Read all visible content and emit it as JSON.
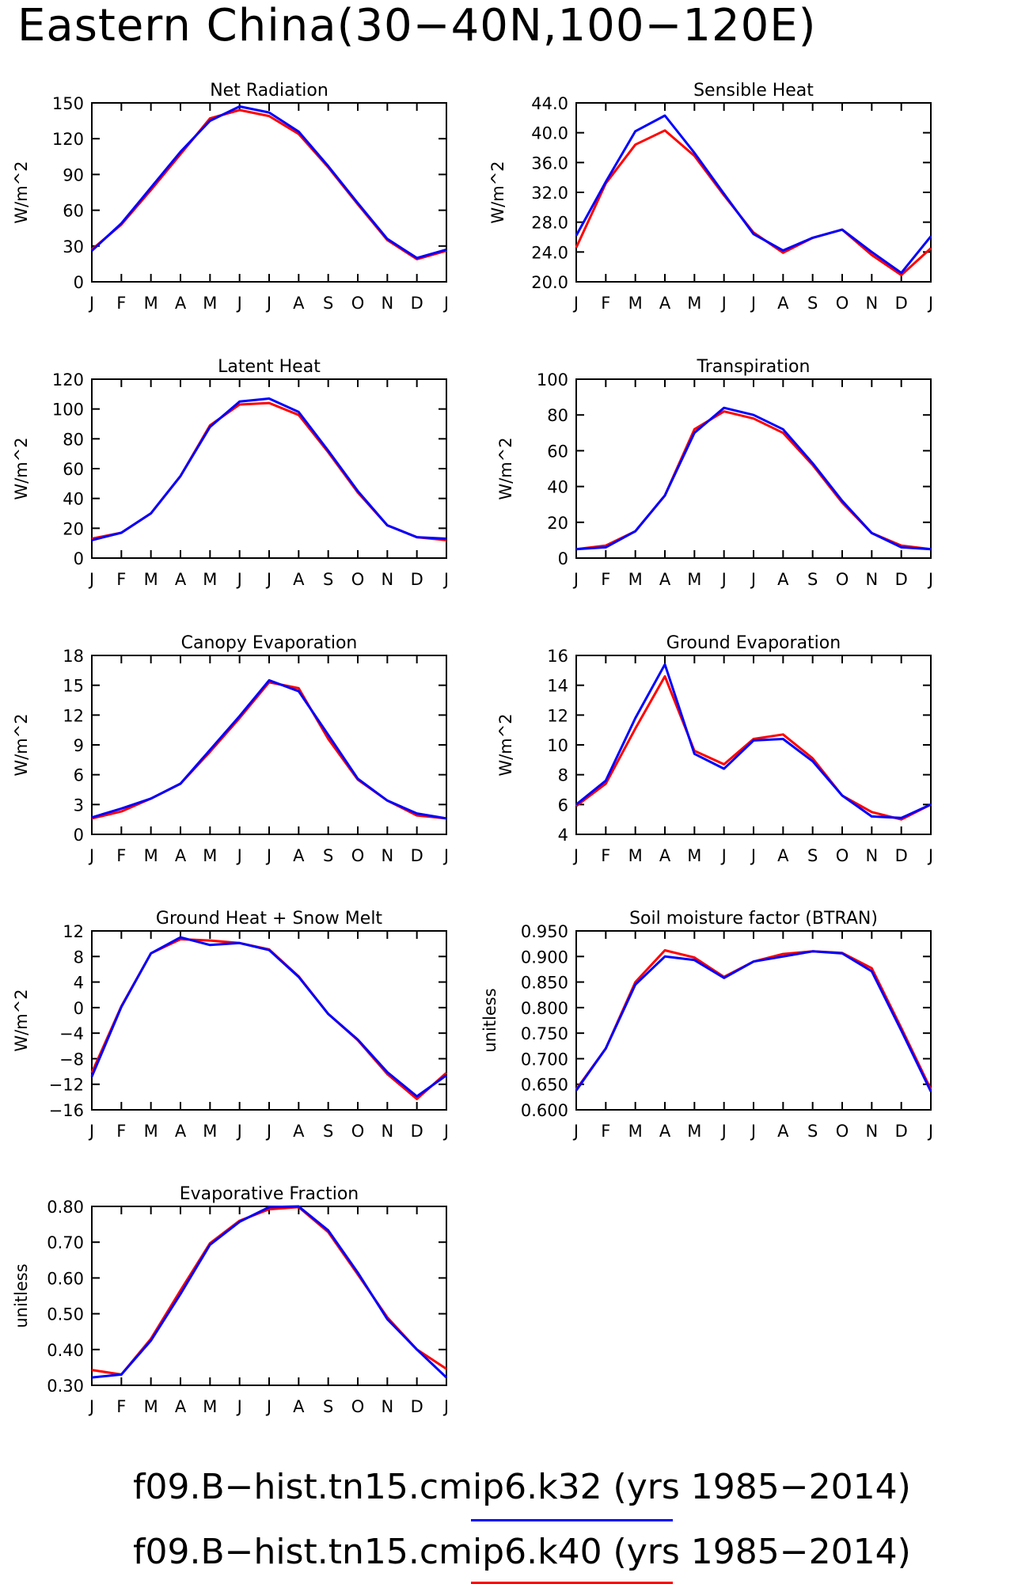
{
  "title": "Eastern China(30−40N,100−120E)",
  "colors": {
    "k32": "#0000ff",
    "k40": "#ff0000",
    "axis": "#000000"
  },
  "legend": [
    {
      "text": "f09.B−hist.tn15.cmip6.k32 (yrs 1985−2014)",
      "color": "#0000ff"
    },
    {
      "text": "f09.B−hist.tn15.cmip6.k40 (yrs 1985−2014)",
      "color": "#ff0000"
    }
  ],
  "chart_data": [
    {
      "type": "line",
      "title": "Net Radiation",
      "ylabel": "W/m^2",
      "categories": [
        "J",
        "F",
        "M",
        "A",
        "M",
        "J",
        "J",
        "A",
        "S",
        "O",
        "N",
        "D",
        "J"
      ],
      "ylim": [
        0,
        150
      ],
      "yticks": [
        0,
        30,
        60,
        90,
        120,
        150
      ],
      "ydecimals": 0,
      "series": [
        {
          "color": "#ff0000",
          "values": [
            27,
            48,
            77,
            107,
            137,
            144,
            139,
            124,
            96,
            65,
            35,
            19,
            26
          ]
        },
        {
          "color": "#0000ff",
          "values": [
            26,
            49,
            79,
            109,
            135,
            147,
            142,
            126,
            97,
            66,
            36,
            20,
            27
          ]
        }
      ]
    },
    {
      "type": "line",
      "title": "Sensible Heat",
      "ylabel": "W/m^2",
      "categories": [
        "J",
        "F",
        "M",
        "A",
        "M",
        "J",
        "J",
        "A",
        "S",
        "O",
        "N",
        "D",
        "J"
      ],
      "ylim": [
        20,
        44
      ],
      "yticks": [
        20,
        24,
        28,
        32,
        36,
        40,
        44
      ],
      "ydecimals": 1,
      "series": [
        {
          "color": "#ff0000",
          "values": [
            24.6,
            33.2,
            38.4,
            40.3,
            36.9,
            31.6,
            26.6,
            23.9,
            25.9,
            27.0,
            23.6,
            20.9,
            24.5
          ]
        },
        {
          "color": "#0000ff",
          "values": [
            26.2,
            33.4,
            40.2,
            42.3,
            37.3,
            31.8,
            26.4,
            24.2,
            25.9,
            27.0,
            24.0,
            21.2,
            26.1
          ]
        }
      ]
    },
    {
      "type": "line",
      "title": "Latent Heat",
      "ylabel": "W/m^2",
      "categories": [
        "J",
        "F",
        "M",
        "A",
        "M",
        "J",
        "J",
        "A",
        "S",
        "O",
        "N",
        "D",
        "J"
      ],
      "ylim": [
        0,
        120
      ],
      "yticks": [
        0,
        20,
        40,
        60,
        80,
        100,
        120
      ],
      "ydecimals": 0,
      "series": [
        {
          "color": "#ff0000",
          "values": [
            13,
            17,
            30,
            55,
            89,
            103,
            104,
            96,
            71,
            44,
            22,
            14,
            12
          ]
        },
        {
          "color": "#0000ff",
          "values": [
            12,
            17,
            30,
            55,
            88,
            105,
            107,
            98,
            72,
            45,
            22,
            14,
            13
          ]
        }
      ]
    },
    {
      "type": "line",
      "title": "Transpiration",
      "ylabel": "W/m^2",
      "categories": [
        "J",
        "F",
        "M",
        "A",
        "M",
        "J",
        "J",
        "A",
        "S",
        "O",
        "N",
        "D",
        "J"
      ],
      "ylim": [
        0,
        100
      ],
      "yticks": [
        0,
        20,
        40,
        60,
        80,
        100
      ],
      "ydecimals": 0,
      "series": [
        {
          "color": "#ff0000",
          "values": [
            5,
            7,
            15,
            35,
            72,
            82,
            78,
            70,
            52,
            31,
            14,
            7,
            5
          ]
        },
        {
          "color": "#0000ff",
          "values": [
            5,
            6,
            15,
            35,
            70,
            84,
            80,
            72,
            53,
            32,
            14,
            6,
            5
          ]
        }
      ]
    },
    {
      "type": "line",
      "title": "Canopy Evaporation",
      "ylabel": "W/m^2",
      "categories": [
        "J",
        "F",
        "M",
        "A",
        "M",
        "J",
        "J",
        "A",
        "S",
        "O",
        "N",
        "D",
        "J"
      ],
      "ylim": [
        0,
        18
      ],
      "yticks": [
        0,
        3,
        6,
        9,
        12,
        15,
        18
      ],
      "ydecimals": 0,
      "series": [
        {
          "color": "#ff0000",
          "values": [
            1.6,
            2.3,
            3.6,
            5.1,
            8.3,
            11.7,
            15.3,
            14.7,
            9.6,
            5.5,
            3.4,
            1.9,
            1.6
          ]
        },
        {
          "color": "#0000ff",
          "values": [
            1.7,
            2.6,
            3.6,
            5.1,
            8.5,
            11.9,
            15.5,
            14.4,
            10.0,
            5.6,
            3.4,
            2.1,
            1.6
          ]
        }
      ]
    },
    {
      "type": "line",
      "title": "Ground Evaporation",
      "ylabel": "W/m^2",
      "categories": [
        "J",
        "F",
        "M",
        "A",
        "M",
        "J",
        "J",
        "A",
        "S",
        "O",
        "N",
        "D",
        "J"
      ],
      "ylim": [
        4,
        16
      ],
      "yticks": [
        4,
        6,
        8,
        10,
        12,
        14,
        16
      ],
      "ydecimals": 0,
      "series": [
        {
          "color": "#ff0000",
          "values": [
            5.9,
            7.4,
            11.1,
            14.6,
            9.6,
            8.7,
            10.4,
            10.7,
            9.1,
            6.6,
            5.5,
            5.0,
            6.0
          ]
        },
        {
          "color": "#0000ff",
          "values": [
            6.0,
            7.6,
            11.8,
            15.4,
            9.4,
            8.4,
            10.3,
            10.4,
            8.9,
            6.6,
            5.2,
            5.1,
            6.0
          ]
        }
      ]
    },
    {
      "type": "line",
      "title": "Ground Heat + Snow Melt",
      "ylabel": "W/m^2",
      "categories": [
        "J",
        "F",
        "M",
        "A",
        "M",
        "J",
        "J",
        "A",
        "S",
        "O",
        "N",
        "D",
        "J"
      ],
      "ylim": [
        -16,
        12
      ],
      "yticks": [
        -16,
        -12,
        -8,
        -4,
        0,
        4,
        8,
        12
      ],
      "ydecimals": 0,
      "series": [
        {
          "color": "#ff0000",
          "values": [
            -10.2,
            0.2,
            8.5,
            10.7,
            10.5,
            10.1,
            9.1,
            4.9,
            -1.0,
            -5.1,
            -10.4,
            -14.3,
            -10.2
          ]
        },
        {
          "color": "#0000ff",
          "values": [
            -10.8,
            0.1,
            8.5,
            11.0,
            9.8,
            10.1,
            9.0,
            4.8,
            -1.0,
            -5.0,
            -10.1,
            -13.9,
            -10.6
          ]
        }
      ]
    },
    {
      "type": "line",
      "title": "Soil moisture factor (BTRAN)",
      "ylabel": "unitless",
      "categories": [
        "J",
        "F",
        "M",
        "A",
        "M",
        "J",
        "J",
        "A",
        "S",
        "O",
        "N",
        "D",
        "J"
      ],
      "ylim": [
        0.6,
        0.95
      ],
      "yticks": [
        0.6,
        0.65,
        0.7,
        0.75,
        0.8,
        0.85,
        0.9,
        0.95
      ],
      "ydecimals": 3,
      "series": [
        {
          "color": "#ff0000",
          "values": [
            0.64,
            0.72,
            0.85,
            0.912,
            0.898,
            0.86,
            0.89,
            0.905,
            0.91,
            0.907,
            0.877,
            0.76,
            0.64
          ]
        },
        {
          "color": "#0000ff",
          "values": [
            0.638,
            0.72,
            0.845,
            0.9,
            0.893,
            0.858,
            0.89,
            0.9,
            0.91,
            0.906,
            0.871,
            0.755,
            0.636
          ]
        }
      ]
    },
    {
      "type": "line",
      "title": "Evaporative Fraction",
      "ylabel": "unitless",
      "categories": [
        "J",
        "F",
        "M",
        "A",
        "M",
        "J",
        "J",
        "A",
        "S",
        "O",
        "N",
        "D",
        "J"
      ],
      "ylim": [
        0.3,
        0.8
      ],
      "yticks": [
        0.3,
        0.4,
        0.5,
        0.6,
        0.7,
        0.8
      ],
      "ydecimals": 2,
      "series": [
        {
          "color": "#ff0000",
          "values": [
            0.343,
            0.33,
            0.43,
            0.565,
            0.697,
            0.76,
            0.792,
            0.798,
            0.728,
            0.61,
            0.49,
            0.4,
            0.346
          ]
        },
        {
          "color": "#0000ff",
          "values": [
            0.322,
            0.33,
            0.425,
            0.555,
            0.693,
            0.757,
            0.798,
            0.8,
            0.733,
            0.615,
            0.485,
            0.4,
            0.322
          ]
        }
      ]
    }
  ]
}
